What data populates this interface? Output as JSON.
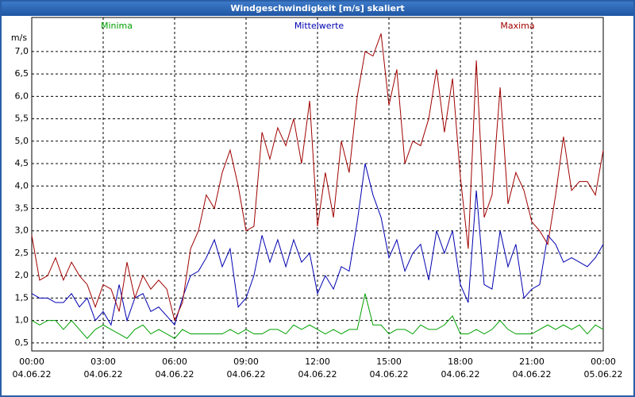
{
  "chart_data": {
    "type": "line",
    "title": "Windgeschwindigkeit [m/s] skaliert",
    "y_label": "m/s",
    "x": [
      0,
      0.33,
      0.67,
      1,
      1.33,
      1.67,
      2,
      2.33,
      2.67,
      3,
      3.33,
      3.67,
      4,
      4.33,
      4.67,
      5,
      5.33,
      5.67,
      6,
      6.33,
      6.67,
      7,
      7.33,
      7.67,
      8,
      8.33,
      8.67,
      9,
      9.33,
      9.67,
      10,
      10.33,
      10.67,
      11,
      11.33,
      11.67,
      12,
      12.33,
      12.67,
      13,
      13.33,
      13.67,
      14,
      14.33,
      14.67,
      15,
      15.33,
      15.67,
      16,
      16.33,
      16.67,
      17,
      17.33,
      17.67,
      18,
      18.33,
      18.67,
      19,
      19.33,
      19.67,
      20,
      20.33,
      20.67,
      21,
      21.33,
      21.67,
      22,
      22.33,
      22.67,
      23,
      23.33,
      23.67,
      24
    ],
    "series": [
      {
        "name": "Minima",
        "color": "#00a000",
        "values": [
          1.0,
          0.9,
          1.0,
          1.0,
          0.8,
          1.0,
          0.8,
          0.6,
          0.8,
          0.9,
          0.8,
          0.7,
          0.6,
          0.8,
          0.9,
          0.7,
          0.8,
          0.7,
          0.6,
          0.8,
          0.7,
          0.7,
          0.7,
          0.7,
          0.7,
          0.8,
          0.7,
          0.8,
          0.7,
          0.7,
          0.8,
          0.8,
          0.7,
          0.9,
          0.8,
          0.9,
          0.8,
          0.7,
          0.8,
          0.7,
          0.8,
          0.8,
          1.6,
          0.9,
          0.9,
          0.7,
          0.8,
          0.8,
          0.7,
          0.9,
          0.8,
          0.8,
          0.9,
          1.1,
          0.7,
          0.7,
          0.8,
          0.7,
          0.8,
          1.0,
          0.8,
          0.7,
          0.7,
          0.7,
          0.8,
          0.9,
          0.8,
          0.9,
          0.8,
          0.9,
          0.7,
          0.9,
          0.8
        ]
      },
      {
        "name": "Mittelwerte",
        "color": "#0000b0",
        "values": [
          1.6,
          1.5,
          1.5,
          1.4,
          1.4,
          1.6,
          1.3,
          1.5,
          1.0,
          1.2,
          0.9,
          1.8,
          1.0,
          1.5,
          1.6,
          1.2,
          1.3,
          1.1,
          0.9,
          1.5,
          2.0,
          2.1,
          2.4,
          2.8,
          2.2,
          2.6,
          1.3,
          1.5,
          2.0,
          2.9,
          2.3,
          2.8,
          2.2,
          2.8,
          2.3,
          2.5,
          1.6,
          2.0,
          1.7,
          2.2,
          2.1,
          3.2,
          4.5,
          3.8,
          3.3,
          2.4,
          2.8,
          2.1,
          2.5,
          2.7,
          1.9,
          3.0,
          2.5,
          3.0,
          1.8,
          1.4,
          3.9,
          1.8,
          1.7,
          3.0,
          2.2,
          2.7,
          1.5,
          1.7,
          1.8,
          2.9,
          2.7,
          2.3,
          2.4,
          2.3,
          2.2,
          2.4,
          2.7
        ]
      },
      {
        "name": "Maxima",
        "color": "#a00000",
        "values": [
          2.9,
          1.9,
          2.0,
          2.4,
          1.9,
          2.3,
          2.0,
          1.8,
          1.3,
          1.8,
          1.7,
          1.2,
          2.3,
          1.5,
          2.0,
          1.7,
          1.9,
          1.7,
          1.0,
          1.4,
          2.6,
          3.0,
          3.8,
          3.5,
          4.3,
          4.8,
          4.0,
          3.0,
          3.1,
          5.2,
          4.6,
          5.3,
          4.9,
          5.5,
          4.5,
          5.9,
          3.1,
          4.3,
          3.3,
          5.0,
          4.3,
          6.0,
          7.0,
          6.9,
          7.4,
          5.8,
          6.6,
          4.5,
          5.0,
          4.9,
          5.5,
          6.6,
          5.2,
          6.4,
          4.2,
          2.6,
          6.8,
          3.3,
          3.8,
          6.2,
          3.6,
          4.3,
          3.9,
          3.2,
          3.0,
          2.7,
          3.8,
          5.1,
          3.9,
          4.1,
          4.1,
          3.8,
          4.8
        ]
      }
    ],
    "xlim": [
      0,
      24
    ],
    "xticks": [
      {
        "value": 0,
        "label": "00:00"
      },
      {
        "value": 3,
        "label": "03:00"
      },
      {
        "value": 6,
        "label": "06:00"
      },
      {
        "value": 9,
        "label": "09:00"
      },
      {
        "value": 12,
        "label": "12:00"
      },
      {
        "value": 15,
        "label": "15:00"
      },
      {
        "value": 18,
        "label": "18:00"
      },
      {
        "value": 21,
        "label": "21:00"
      },
      {
        "value": 24,
        "label": "00:00"
      }
    ],
    "xtick_dates": [
      "04.06.22",
      "04.06.22",
      "04.06.22",
      "04.06.22",
      "04.06.22",
      "04.06.22",
      "04.06.22",
      "04.06.22",
      "05.06.22"
    ],
    "ylim": [
      0.32,
      7.76
    ],
    "yticks": [
      {
        "value": 0.5,
        "label": "0,5"
      },
      {
        "value": 1,
        "label": "1,0"
      },
      {
        "value": 1.5,
        "label": "1,5"
      },
      {
        "value": 2,
        "label": "2,0"
      },
      {
        "value": 2.5,
        "label": "2,5"
      },
      {
        "value": 3,
        "label": "3,0"
      },
      {
        "value": 3.5,
        "label": "3,5"
      },
      {
        "value": 4,
        "label": "4,0"
      },
      {
        "value": 4.5,
        "label": "4,5"
      },
      {
        "value": 5,
        "label": "5,0"
      },
      {
        "value": 5.5,
        "label": "5,5"
      },
      {
        "value": 6,
        "label": "6,0"
      },
      {
        "value": 6.5,
        "label": "6,5"
      },
      {
        "value": 7,
        "label": "7,0"
      }
    ],
    "grid": true
  }
}
